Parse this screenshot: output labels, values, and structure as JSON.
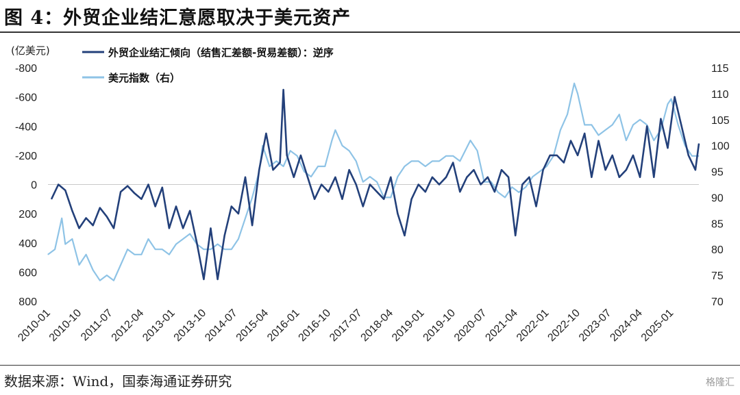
{
  "figure_title": "图 4：外贸企业结汇意愿取决于美元资产",
  "source": "数据来源：Wind，国泰海通证券研究",
  "watermark": "格隆汇",
  "chart_data": {
    "type": "line",
    "y_left_unit": "(亿美元)",
    "y_left_inverted": true,
    "y_left_ticks": [
      "-800",
      "-600",
      "-400",
      "-200",
      "0",
      "200",
      "400",
      "600",
      "800"
    ],
    "y_left_range": [
      -800,
      800
    ],
    "y_right_ticks": [
      "115",
      "110",
      "105",
      "100",
      "95",
      "90",
      "85",
      "80",
      "75",
      "70"
    ],
    "y_right_range": [
      70,
      115
    ],
    "x_tick_labels": [
      "2010-01",
      "2010-10",
      "2011-07",
      "2012-04",
      "2013-01",
      "2013-10",
      "2014-07",
      "2015-04",
      "2016-01",
      "2016-10",
      "2017-07",
      "2018-04",
      "2019-01",
      "2019-10",
      "2020-07",
      "2021-04",
      "2022-01",
      "2022-10",
      "2023-07",
      "2024-04",
      "2025-01"
    ],
    "x_range": [
      "2010-01",
      "2025-09"
    ],
    "legend_position": "top",
    "series": [
      {
        "name": "外贸企业结汇倾向（结售汇差额-贸易差额）：逆序",
        "axis": "left",
        "color": "#23407a",
        "x": [
          "2010-02",
          "2010-04",
          "2010-06",
          "2010-08",
          "2010-10",
          "2010-12",
          "2011-02",
          "2011-04",
          "2011-06",
          "2011-08",
          "2011-10",
          "2011-12",
          "2012-02",
          "2012-04",
          "2012-06",
          "2012-08",
          "2012-10",
          "2012-12",
          "2013-02",
          "2013-04",
          "2013-06",
          "2013-08",
          "2013-10",
          "2013-12",
          "2014-02",
          "2014-04",
          "2014-06",
          "2014-08",
          "2014-10",
          "2014-12",
          "2015-02",
          "2015-04",
          "2015-06",
          "2015-08",
          "2015-09",
          "2015-10",
          "2015-12",
          "2016-02",
          "2016-04",
          "2016-06",
          "2016-08",
          "2016-10",
          "2016-12",
          "2017-02",
          "2017-04",
          "2017-06",
          "2017-08",
          "2017-10",
          "2017-12",
          "2018-02",
          "2018-04",
          "2018-06",
          "2018-08",
          "2018-10",
          "2018-12",
          "2019-02",
          "2019-04",
          "2019-06",
          "2019-08",
          "2019-10",
          "2019-12",
          "2020-02",
          "2020-04",
          "2020-06",
          "2020-08",
          "2020-10",
          "2020-12",
          "2021-02",
          "2021-04",
          "2021-06",
          "2021-08",
          "2021-10",
          "2021-12",
          "2022-02",
          "2022-04",
          "2022-06",
          "2022-08",
          "2022-10",
          "2022-12",
          "2023-02",
          "2023-04",
          "2023-06",
          "2023-08",
          "2023-10",
          "2023-12",
          "2024-02",
          "2024-04",
          "2024-06",
          "2024-08",
          "2024-10",
          "2024-12",
          "2025-02",
          "2025-04",
          "2025-06",
          "2025-08",
          "2025-09"
        ],
        "values": [
          100,
          0,
          40,
          180,
          300,
          230,
          280,
          160,
          220,
          300,
          50,
          10,
          60,
          100,
          0,
          150,
          20,
          300,
          150,
          300,
          180,
          400,
          650,
          300,
          650,
          350,
          150,
          200,
          -50,
          280,
          -100,
          -350,
          -100,
          -150,
          -650,
          -200,
          -50,
          -200,
          -50,
          100,
          0,
          50,
          -50,
          100,
          -100,
          0,
          150,
          0,
          50,
          100,
          -50,
          200,
          350,
          100,
          0,
          50,
          -50,
          0,
          -50,
          -150,
          50,
          -50,
          -100,
          0,
          -50,
          50,
          -100,
          -50,
          350,
          0,
          -50,
          150,
          -100,
          -200,
          -200,
          -150,
          -300,
          -200,
          -350,
          -50,
          -300,
          -100,
          -200,
          -50,
          -100,
          -200,
          -50,
          -400,
          -50,
          -450,
          -250,
          -600,
          -400,
          -200,
          -100,
          -280
        ]
      },
      {
        "name": "美元指数（右）",
        "axis": "right",
        "color": "#8ec3e6",
        "x": [
          "2010-01",
          "2010-03",
          "2010-05",
          "2010-06",
          "2010-08",
          "2010-10",
          "2010-12",
          "2011-02",
          "2011-04",
          "2011-06",
          "2011-08",
          "2011-10",
          "2011-12",
          "2012-02",
          "2012-04",
          "2012-06",
          "2012-08",
          "2012-10",
          "2012-12",
          "2013-02",
          "2013-04",
          "2013-06",
          "2013-08",
          "2013-10",
          "2013-12",
          "2014-02",
          "2014-04",
          "2014-06",
          "2014-08",
          "2014-10",
          "2014-12",
          "2015-02",
          "2015-03",
          "2015-05",
          "2015-07",
          "2015-09",
          "2015-11",
          "2016-01",
          "2016-03",
          "2016-05",
          "2016-07",
          "2016-09",
          "2016-11",
          "2016-12",
          "2017-02",
          "2017-04",
          "2017-06",
          "2017-08",
          "2017-10",
          "2017-12",
          "2018-02",
          "2018-04",
          "2018-06",
          "2018-08",
          "2018-10",
          "2018-12",
          "2019-02",
          "2019-04",
          "2019-06",
          "2019-08",
          "2019-10",
          "2019-12",
          "2020-03",
          "2020-05",
          "2020-07",
          "2020-09",
          "2020-11",
          "2021-01",
          "2021-03",
          "2021-05",
          "2021-07",
          "2021-09",
          "2021-11",
          "2022-01",
          "2022-03",
          "2022-05",
          "2022-07",
          "2022-09",
          "2022-10",
          "2022-12",
          "2023-02",
          "2023-04",
          "2023-06",
          "2023-08",
          "2023-10",
          "2023-12",
          "2024-02",
          "2024-04",
          "2024-06",
          "2024-08",
          "2024-10",
          "2024-12",
          "2025-01",
          "2025-03",
          "2025-05",
          "2025-07",
          "2025-09"
        ],
        "values": [
          79,
          80,
          86,
          81,
          82,
          77,
          79,
          76,
          74,
          75,
          74,
          77,
          80,
          79,
          79,
          82,
          80,
          80,
          79,
          81,
          82,
          83,
          81,
          80,
          80,
          81,
          80,
          80,
          82,
          86,
          90,
          95,
          100,
          96,
          97,
          96,
          99,
          98,
          95,
          94,
          96,
          96,
          101,
          103,
          100,
          99,
          97,
          93,
          94,
          93,
          90,
          90,
          94,
          96,
          97,
          97,
          96,
          97,
          97,
          98,
          98,
          97,
          101,
          99,
          93,
          93,
          91,
          90,
          92,
          91,
          92,
          94,
          95,
          96,
          98,
          103,
          106,
          112,
          110,
          104,
          104,
          102,
          103,
          104,
          106,
          101,
          104,
          105,
          104,
          101,
          103,
          108,
          109,
          104,
          100,
          98,
          98
        ]
      }
    ]
  }
}
